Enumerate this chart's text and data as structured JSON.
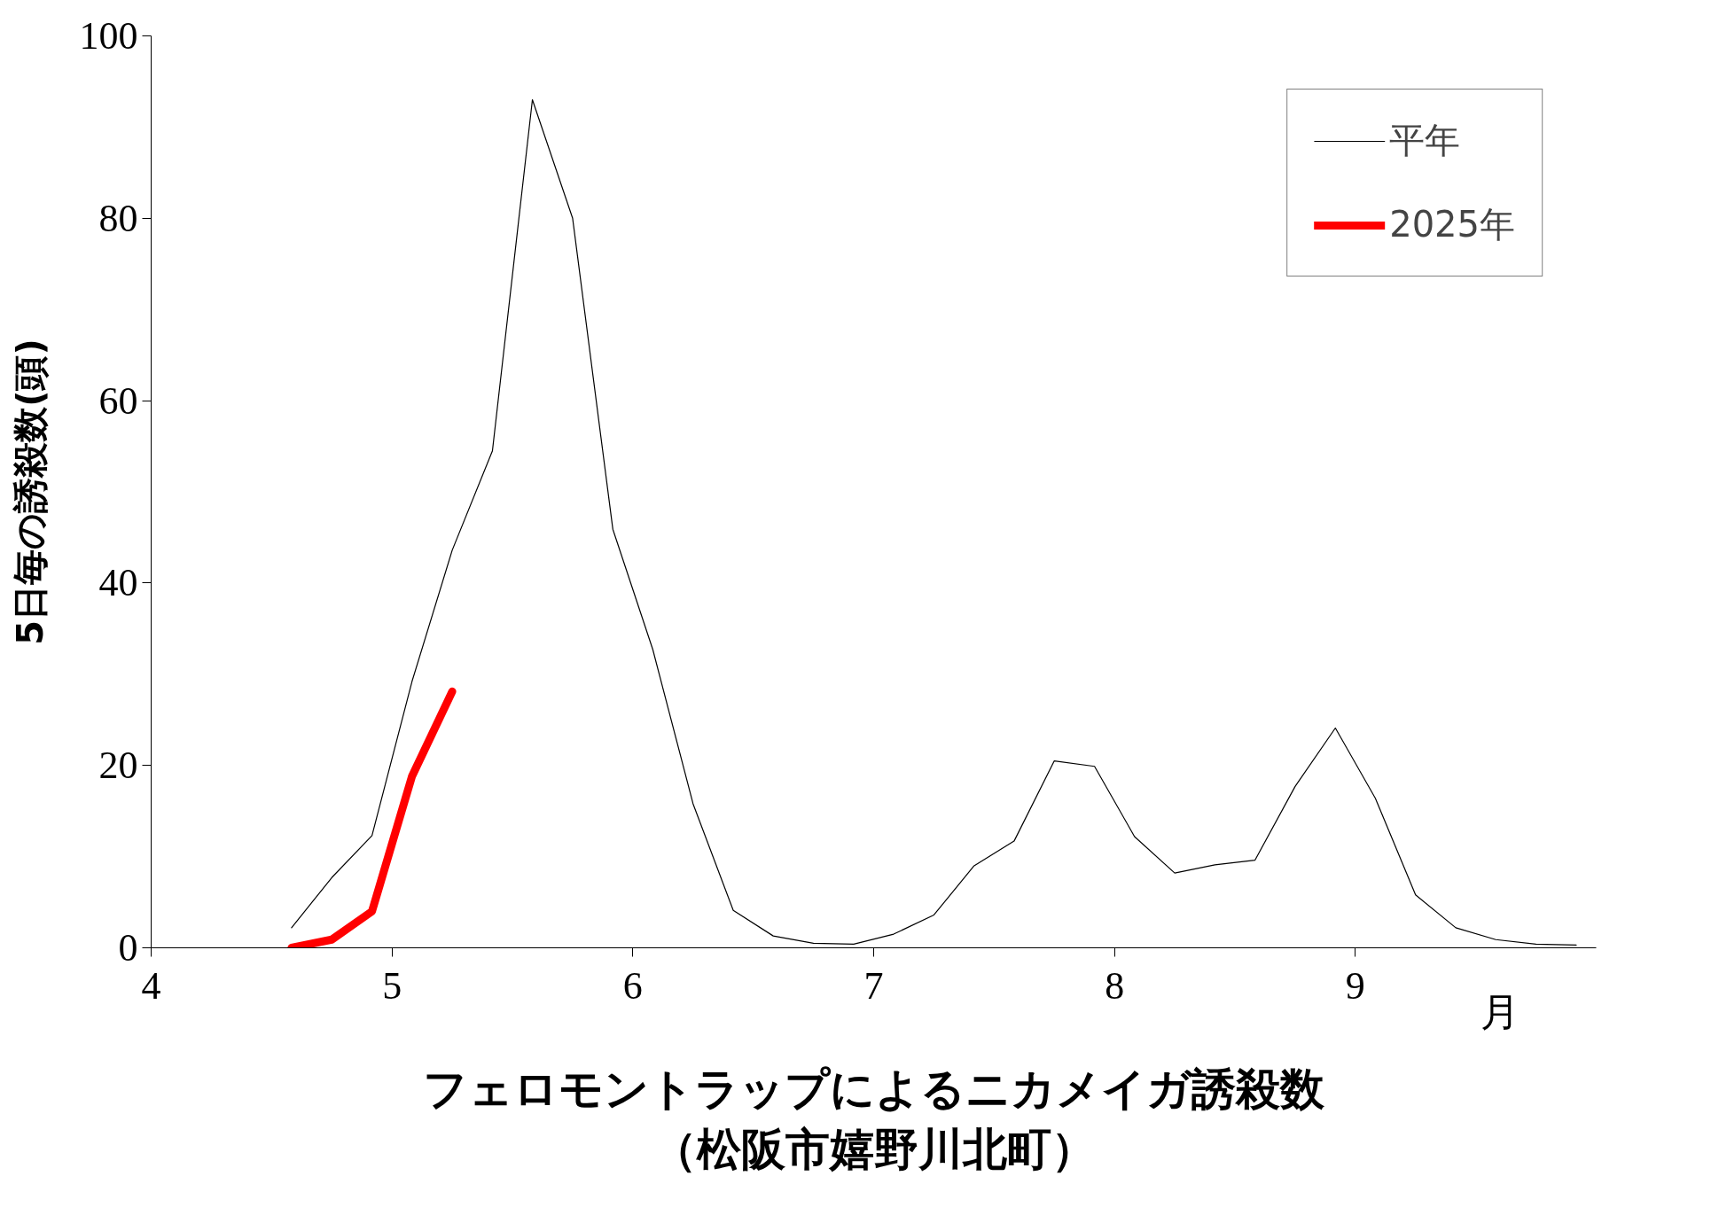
{
  "chart_data": {
    "type": "line",
    "xlabel": "フェロモントラップによるニカメイガ誘殺数",
    "subtitle": "（松阪市嬉野川北町）",
    "ylabel": "5日毎の誘殺数(頭)",
    "annotations": [
      "月"
    ],
    "xlim": [
      4,
      10
    ],
    "xticks": [
      4,
      5,
      6,
      7,
      8,
      9
    ],
    "ylim": [
      0,
      100
    ],
    "yticks": [
      0,
      20,
      40,
      60,
      80,
      100
    ],
    "grid": false,
    "legend": "top right",
    "marker": "none",
    "series": [
      {
        "name": "平年",
        "color": "#000000",
        "x": [
          4.583,
          4.75,
          4.917,
          5.083,
          5.25,
          5.417,
          5.583,
          5.75,
          5.917,
          6.083,
          6.25,
          6.417,
          6.583,
          6.75,
          6.917,
          7.083,
          7.25,
          7.417,
          7.583,
          7.75,
          7.917,
          8.083,
          8.25,
          8.417,
          8.583,
          8.75,
          8.917,
          9.083,
          9.25,
          9.417,
          9.583,
          9.75,
          9.917
        ],
        "values": [
          2.2,
          7.7,
          12.3,
          29.2,
          43.6,
          54.5,
          93,
          80,
          45.9,
          32.7,
          15.8,
          4.1,
          1.3,
          0.5,
          0.4,
          1.5,
          3.6,
          9.0,
          11.7,
          20.5,
          19.9,
          12.2,
          8.2,
          9.1,
          9.6,
          17.7,
          24.1,
          16.4,
          5.8,
          2.2,
          0.9,
          0.4,
          0.3
        ]
      },
      {
        "name": "2025年",
        "color": "#ff0000",
        "x": [
          4.583,
          4.75,
          4.917,
          5.083,
          5.25
        ],
        "values": [
          0,
          0.9,
          4.0,
          18.8,
          28.1
        ]
      }
    ]
  }
}
